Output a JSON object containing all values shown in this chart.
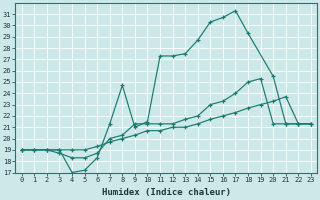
{
  "bg_color": "#cce8e8",
  "grid_color": "#b0d0d0",
  "line_color": "#1a7a6e",
  "xlabel": "Humidex (Indice chaleur)",
  "xlim": [
    -0.5,
    23.5
  ],
  "ylim": [
    17,
    32
  ],
  "xticks": [
    0,
    1,
    2,
    3,
    4,
    5,
    6,
    7,
    8,
    9,
    10,
    11,
    12,
    13,
    14,
    15,
    16,
    17,
    18,
    19,
    20,
    21,
    22,
    23
  ],
  "yticks": [
    17,
    18,
    19,
    20,
    21,
    22,
    23,
    24,
    25,
    26,
    27,
    28,
    29,
    30,
    31
  ],
  "series": [
    {
      "x": [
        0,
        1,
        2,
        3,
        4,
        5,
        6,
        7,
        8,
        9,
        10,
        11,
        12,
        13,
        14,
        15,
        16,
        17,
        18,
        20,
        21,
        22,
        23
      ],
      "y": [
        19,
        19,
        19,
        19,
        17,
        17.2,
        18.3,
        21.3,
        24.7,
        21,
        21.5,
        27.3,
        27.3,
        27.5,
        28.7,
        30.3,
        30.7,
        31.3,
        29.3,
        25.5,
        21.3,
        21.3,
        21.3
      ]
    },
    {
      "x": [
        0,
        1,
        2,
        3,
        4,
        5,
        6,
        7,
        8,
        9,
        10,
        11,
        12,
        13,
        14,
        15,
        16,
        17,
        18,
        19,
        20,
        21,
        22,
        23
      ],
      "y": [
        19,
        19,
        19,
        18.7,
        18.3,
        18.3,
        18.7,
        20,
        20.3,
        21.3,
        21.3,
        21.3,
        21.3,
        21.7,
        22,
        23,
        23.3,
        24,
        25,
        25.3,
        21.3,
        21.3,
        21.3,
        21.3
      ]
    },
    {
      "x": [
        0,
        1,
        2,
        3,
        4,
        5,
        6,
        7,
        8,
        9,
        10,
        11,
        12,
        13,
        14,
        15,
        16,
        17,
        18,
        19,
        20,
        21,
        22,
        23
      ],
      "y": [
        19,
        19,
        19,
        19,
        19,
        19,
        19.3,
        19.7,
        20,
        20.3,
        20.7,
        20.7,
        21,
        21,
        21.3,
        21.7,
        22,
        22.3,
        22.7,
        23,
        23.3,
        23.7,
        21.3,
        21.3
      ]
    }
  ]
}
